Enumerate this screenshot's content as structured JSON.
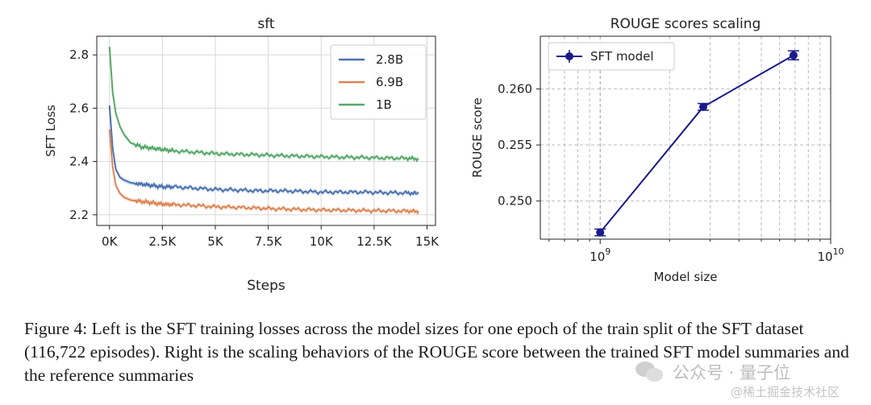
{
  "chart_data": [
    {
      "type": "line",
      "title": "sft",
      "xlabel": "Steps",
      "ylabel": "SFT Loss",
      "xlim": [
        -600,
        15400
      ],
      "ylim": [
        2.16,
        2.87
      ],
      "xticks": [
        0,
        2500,
        5000,
        7500,
        10000,
        12500,
        15000
      ],
      "xtick_labels": [
        "0K",
        "2.5K",
        "5K",
        "7.5K",
        "10K",
        "12.5K",
        "15K"
      ],
      "yticks": [
        2.2,
        2.4,
        2.6,
        2.8
      ],
      "ytick_labels": [
        "2.2",
        "2.4",
        "2.6",
        "2.8"
      ],
      "grid": true,
      "legend_position": "top-right",
      "series": [
        {
          "name": "2.8B",
          "color": "#4c72b0",
          "x": [
            0,
            150,
            300,
            500,
            700,
            1000,
            1500,
            2000,
            2500,
            3000,
            4000,
            5000,
            6000,
            7000,
            8000,
            9000,
            10000,
            11000,
            12000,
            13000,
            14000,
            14600
          ],
          "y": [
            2.61,
            2.45,
            2.37,
            2.34,
            2.33,
            2.32,
            2.315,
            2.31,
            2.305,
            2.305,
            2.3,
            2.295,
            2.293,
            2.29,
            2.29,
            2.288,
            2.285,
            2.285,
            2.285,
            2.283,
            2.282,
            2.28
          ]
        },
        {
          "name": "6.9B",
          "color": "#dd8452",
          "x": [
            0,
            150,
            300,
            500,
            700,
            1000,
            1500,
            2000,
            2500,
            3000,
            4000,
            5000,
            6000,
            7000,
            8000,
            9000,
            10000,
            11000,
            12000,
            13000,
            14000,
            14600
          ],
          "y": [
            2.52,
            2.38,
            2.31,
            2.28,
            2.265,
            2.255,
            2.25,
            2.245,
            2.24,
            2.238,
            2.235,
            2.23,
            2.228,
            2.225,
            2.222,
            2.22,
            2.218,
            2.217,
            2.216,
            2.215,
            2.214,
            2.213
          ]
        },
        {
          "name": "1B",
          "color": "#55a868",
          "x": [
            0,
            150,
            300,
            500,
            700,
            1000,
            1500,
            2000,
            2500,
            3000,
            4000,
            5000,
            6000,
            7000,
            8000,
            9000,
            10000,
            11000,
            12000,
            13000,
            14000,
            14600
          ],
          "y": [
            2.83,
            2.66,
            2.58,
            2.53,
            2.5,
            2.47,
            2.455,
            2.45,
            2.445,
            2.44,
            2.435,
            2.43,
            2.427,
            2.425,
            2.422,
            2.42,
            2.418,
            2.416,
            2.415,
            2.413,
            2.412,
            2.41
          ]
        }
      ]
    },
    {
      "type": "line",
      "title": "ROUGE scores scaling",
      "xlabel": "Model size",
      "ylabel": "ROUGE score",
      "xscale": "log",
      "xlim": [
        550000000,
        10000000000
      ],
      "ylim": [
        0.2466,
        0.2647
      ],
      "xticks_major": [
        1000000000,
        10000000000
      ],
      "xtick_labels": [
        {
          "base": "10",
          "exp": "9"
        },
        {
          "base": "10",
          "exp": "10"
        }
      ],
      "yticks": [
        0.25,
        0.255,
        0.26
      ],
      "ytick_labels": [
        "0.250",
        "0.255",
        "0.260"
      ],
      "grid": true,
      "legend_position": "top-left",
      "series": [
        {
          "name": "SFT model",
          "color": "#1a1a8c",
          "x": [
            1000000000,
            2800000000,
            6900000000
          ],
          "y": [
            0.2472,
            0.2584,
            0.263
          ],
          "err": [
            0.0003,
            0.0003,
            0.0004
          ]
        }
      ]
    }
  ],
  "caption": "Figure 4: Left is the SFT training losses across the model sizes for one epoch of the train split of the SFT dataset (116,722 episodes). Right is the scaling behaviors of the ROUGE score between the trained SFT model summaries and the reference summaries",
  "watermark": {
    "account": "公众号 · 量子位",
    "site": "@稀土掘金技术社区"
  }
}
